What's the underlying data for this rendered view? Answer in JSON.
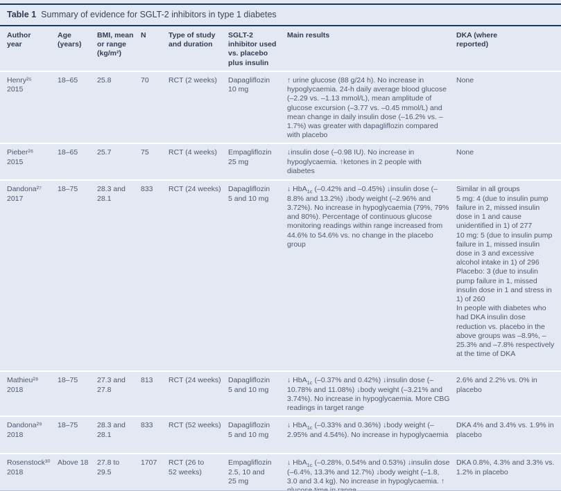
{
  "page": {
    "background_color": "#e4e8f2",
    "rule_color": "#17375d",
    "title": {
      "label": "Table 1",
      "text": "Summary of evidence for SGLT-2 inhibitors in type 1 diabetes"
    }
  },
  "table": {
    "columns": [
      "Author\nyear",
      "Age\n(years)",
      "BMI, mean\nor range\n(kg/m²)",
      "N",
      "Type of study\nand duration",
      "SGLT-2\ninhibitor used\nvs. placebo\nplus insulin",
      "Main results",
      "DKA (where\nreported)"
    ],
    "rows": [
      {
        "author": "Henry²⁵\n2015",
        "age": "18–65",
        "bmi": "25.8",
        "n": "70",
        "study": "RCT (2 weeks)",
        "inhibitor": "Dapagliflozin\n10 mg",
        "results": "↑ urine glucose (88 g/24 h). No increase in hypoglycaemia. 24-h daily average blood glucose (–2.29 vs. –1.13 mmol/L), mean amplitude of glucose excursion (–3.77 vs. –0.45 mmol/L) and mean change in daily insulin dose (–16.2% vs. –1.7%) was greater with dapagliflozin compared with placebo",
        "dka": "None"
      },
      {
        "author": "Pieber²⁶\n2015",
        "age": "18–65",
        "bmi": "25.7",
        "n": "75",
        "study": "RCT (4 weeks)",
        "inhibitor": "Empagliflozin\n25 mg",
        "results": "↓insulin dose (–0.98 IU). No increase in hypoglycaemia. ↑ketones in 2 people with diabetes",
        "dka": "None"
      },
      {
        "author": "Dandona²⁷\n2017",
        "age": "18–75",
        "bmi": "28.3 and\n28.1",
        "n": "833",
        "study": "RCT (24 weeks)",
        "inhibitor": "Dapagliflozin\n5 and 10 mg",
        "results": "↓ HbA1c (–0.42% and –0.45%) ↓insulin dose (–8.8% and 13.2%) ↓body weight (–2.96% and 3.72%). No increase in hypoglycaemia (79%, 79% and 80%). Percentage of continuous glucose monitoring readings within range increased from 44.6% to 54.6% vs. no change in the placebo group",
        "dka": "Similar in all groups\n5 mg: 4 (due to insulin pump failure in 2, missed insulin dose in 1 and cause unidentified in 1) of 277\n10 mg: 5 (due to insulin pump failure in 1, missed insulin dose in 3 and excessive alcohol intake in 1) of 296\nPlacebo: 3 (due to insulin pump failure in 1, missed insulin dose in 1 and stress in 1) of 260\nIn people with diabetes who had DKA insulin dose reduction vs. placebo in the above groups was –8.9%, –25.3% and –7.8% respectively at the time of DKA"
      },
      {
        "author": "Mathieu²⁸\n2018",
        "age": "18–75",
        "bmi": "27.3 and\n27.8",
        "n": "813",
        "study": "RCT (24 weeks)",
        "inhibitor": "Dapagliflozin\n5 and 10 mg",
        "results": "↓ HbA1c (–0.37% and 0.42%) ↓insulin dose (–10.78% and 11.08%) ↓body weight (–3.21% and 3.74%). No increase in hypoglycaemia. More CBG readings in target range",
        "dka": "2.6% and 2.2% vs. 0% in placebo"
      },
      {
        "author": "Dandona²⁹\n2018",
        "age": "18–75",
        "bmi": "28.3 and\n28.1",
        "n": "833",
        "study": "RCT (52 weeks)",
        "inhibitor": "Dapagliflozin\n5 and 10 mg",
        "results": "↓ HbA1c (–0.33% and 0.36%) ↓body weight (–2.95% and 4.54%). No increase in hypoglycaemia",
        "dka": "DKA 4% and 3.4% vs. 1.9% in placebo"
      },
      {
        "author": "Rosenstock³⁰\n2018",
        "age": "Above 18",
        "bmi": "27.8 to\n29.5",
        "n": "1707",
        "study": "RCT (26 to\n52 weeks)",
        "inhibitor": "Empagliflozin\n2.5, 10 and\n25 mg",
        "results": "↓ HbA1c (–0.28%, 0.54% and 0.53%) ↓insulin dose (–6.4%, 13.3% and 12.7%) ↓body weight (–1.8, 3.0 and 3.4 kg). No increase in hypoglycaemia. ↑ glucose time in range",
        "dka": "DKA 0.8%, 4.3% and 3.3% vs. 1.2% in placebo"
      }
    ]
  }
}
